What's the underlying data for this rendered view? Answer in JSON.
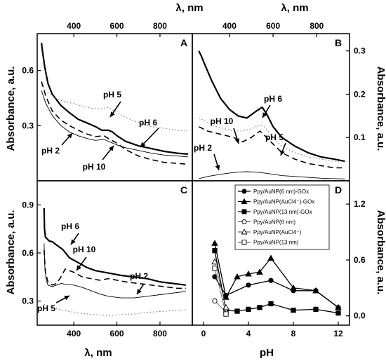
{
  "figure": {
    "top_axis_title": "λ, nm",
    "bottom_axis_title": "λ, nm",
    "left_axis_title": "Absorbance, a.u.",
    "right_axis_title": "Absorbance, a.u.",
    "bottom_right_axis_title": "pH"
  },
  "chart_data": [
    {
      "panel": "A",
      "type": "line",
      "xlabel": "λ, nm",
      "ylabel": "Absorbance, a.u.",
      "xlim": [
        230,
        950
      ],
      "ylim": [
        0.0,
        0.8
      ],
      "xticks": [
        "400",
        "600",
        "800"
      ],
      "yticks": [
        "0.3",
        "0.6"
      ],
      "series": [
        {
          "name": "pH 6",
          "style": "solid-thick",
          "x": [
            250,
            255,
            265,
            280,
            300,
            340,
            380,
            420,
            460,
            500,
            530,
            560,
            580,
            600,
            640,
            700,
            760,
            820,
            880,
            930
          ],
          "y": [
            0.75,
            0.7,
            0.62,
            0.53,
            0.47,
            0.41,
            0.37,
            0.335,
            0.315,
            0.295,
            0.275,
            0.275,
            0.265,
            0.245,
            0.215,
            0.19,
            0.175,
            0.16,
            0.15,
            0.145
          ]
        },
        {
          "name": "pH 5",
          "style": "dotted",
          "x": [
            250,
            280,
            320,
            360,
            400,
            440,
            480,
            520,
            560,
            600,
            640,
            700,
            760,
            820,
            880,
            930
          ],
          "y": [
            0.52,
            0.48,
            0.445,
            0.43,
            0.42,
            0.405,
            0.395,
            0.39,
            0.4,
            0.37,
            0.345,
            0.315,
            0.295,
            0.285,
            0.275,
            0.27
          ]
        },
        {
          "name": "pH 10",
          "style": "dashed",
          "x": [
            250,
            270,
            300,
            340,
            380,
            420,
            460,
            500,
            540,
            560,
            600,
            640,
            700,
            760,
            820,
            880,
            930
          ],
          "y": [
            0.54,
            0.46,
            0.38,
            0.33,
            0.3,
            0.275,
            0.255,
            0.24,
            0.245,
            0.23,
            0.205,
            0.17,
            0.135,
            0.115,
            0.1,
            0.095,
            0.09
          ]
        },
        {
          "name": "pH 2",
          "style": "solid-thin",
          "x": [
            250,
            270,
            300,
            340,
            380,
            420,
            460,
            500,
            540,
            560,
            600,
            640,
            700,
            760,
            820,
            880,
            930
          ],
          "y": [
            0.49,
            0.42,
            0.355,
            0.3,
            0.265,
            0.245,
            0.23,
            0.22,
            0.225,
            0.215,
            0.195,
            0.18,
            0.165,
            0.15,
            0.14,
            0.135,
            0.13
          ]
        }
      ],
      "annotations": [
        "pH 5",
        "pH 6",
        "pH 2",
        "pH 10"
      ]
    },
    {
      "panel": "B",
      "type": "line",
      "xlabel": "λ, nm",
      "ylabel": "Absorbance, a.u.",
      "xlim": [
        230,
        950
      ],
      "ylim": [
        0.0,
        0.34
      ],
      "xticks": [
        "400",
        "600",
        "800"
      ],
      "yticks": [
        "0.1",
        "0.2",
        "0.3"
      ],
      "series": [
        {
          "name": "pH 6",
          "style": "solid-thick",
          "x": [
            260,
            270,
            290,
            320,
            360,
            400,
            440,
            480,
            520,
            550,
            570,
            600,
            640,
            700,
            760,
            820,
            880,
            930
          ],
          "y": [
            0.3,
            0.29,
            0.265,
            0.23,
            0.19,
            0.165,
            0.15,
            0.145,
            0.16,
            0.17,
            0.155,
            0.125,
            0.1,
            0.08,
            0.065,
            0.055,
            0.05,
            0.045
          ]
        },
        {
          "name": "pH 5",
          "style": "dotted",
          "x": [
            260,
            300,
            340,
            380,
            420,
            460,
            500,
            540,
            560,
            600,
            640,
            700,
            760,
            820,
            880,
            930
          ],
          "y": [
            0.145,
            0.135,
            0.125,
            0.12,
            0.115,
            0.115,
            0.12,
            0.13,
            0.125,
            0.1,
            0.08,
            0.065,
            0.055,
            0.05,
            0.045,
            0.045
          ]
        },
        {
          "name": "pH 10",
          "style": "dashed",
          "x": [
            260,
            300,
            340,
            380,
            420,
            460,
            500,
            540,
            560,
            600,
            640,
            700,
            760,
            820,
            880,
            930
          ],
          "y": [
            0.125,
            0.115,
            0.11,
            0.105,
            0.1,
            0.09,
            0.1,
            0.115,
            0.105,
            0.085,
            0.065,
            0.05,
            0.04,
            0.035,
            0.03,
            0.03
          ]
        },
        {
          "name": "pH 2",
          "style": "solid-thin",
          "x": [
            260,
            300,
            360,
            400,
            440,
            480,
            520,
            560,
            600,
            640,
            700,
            760,
            820,
            880,
            930
          ],
          "y": [
            0.005,
            0.01,
            0.015,
            0.018,
            0.02,
            0.021,
            0.02,
            0.018,
            0.015,
            0.012,
            0.01,
            0.008,
            0.006,
            0.005,
            0.004
          ]
        }
      ],
      "annotations": [
        "pH 6",
        "pH 10",
        "pH 5",
        "pH 2"
      ]
    },
    {
      "panel": "C",
      "type": "line",
      "xlabel": "λ, nm",
      "ylabel": "Absorbance, a.u.",
      "xlim": [
        230,
        950
      ],
      "ylim": [
        0.15,
        1.05
      ],
      "xticks": [
        "400",
        "600",
        "800"
      ],
      "yticks": [
        "0.3",
        "0.6",
        "0.9"
      ],
      "series": [
        {
          "name": "pH 6",
          "style": "solid-thick",
          "x": [
            262,
            264,
            268,
            275,
            285,
            300,
            320,
            350,
            380,
            420,
            460,
            500,
            560,
            620,
            680,
            740,
            800,
            860,
            920
          ],
          "y": [
            0.88,
            0.75,
            0.7,
            0.69,
            0.675,
            0.67,
            0.65,
            0.62,
            0.57,
            0.54,
            0.51,
            0.49,
            0.475,
            0.46,
            0.45,
            0.44,
            0.42,
            0.41,
            0.4
          ]
        },
        {
          "name": "pH 10",
          "style": "dashed",
          "x": [
            262,
            268,
            280,
            300,
            320,
            340,
            360,
            380,
            400,
            440,
            480,
            520,
            560,
            600,
            640,
            700,
            760,
            820,
            880,
            920
          ],
          "y": [
            0.62,
            0.48,
            0.42,
            0.4,
            0.41,
            0.45,
            0.5,
            0.49,
            0.48,
            0.45,
            0.44,
            0.43,
            0.44,
            0.43,
            0.42,
            0.41,
            0.4,
            0.39,
            0.38,
            0.38
          ]
        },
        {
          "name": "pH 2",
          "style": "solid-thin",
          "x": [
            262,
            266,
            272,
            280,
            300,
            320,
            340,
            360,
            400,
            440,
            480,
            520,
            560,
            620,
            680,
            740,
            800,
            860,
            920
          ],
          "y": [
            0.66,
            0.5,
            0.43,
            0.4,
            0.39,
            0.4,
            0.41,
            0.405,
            0.4,
            0.385,
            0.365,
            0.345,
            0.33,
            0.32,
            0.32,
            0.33,
            0.34,
            0.35,
            0.36
          ]
        },
        {
          "name": "pH 5",
          "style": "dotted",
          "x": [
            262,
            300,
            340,
            380,
            420,
            460,
            500,
            560,
            620,
            680,
            740,
            800,
            860,
            920
          ],
          "y": [
            0.28,
            0.26,
            0.245,
            0.235,
            0.225,
            0.22,
            0.215,
            0.21,
            0.215,
            0.22,
            0.23,
            0.235,
            0.24,
            0.245
          ]
        }
      ],
      "annotations": [
        "pH 6",
        "pH 10",
        "pH 2",
        "pH 5"
      ]
    },
    {
      "panel": "D",
      "type": "line",
      "xlabel": "pH",
      "ylabel": "Absorbance, a.u.",
      "xlim": [
        -1,
        13
      ],
      "ylim": [
        -0.1,
        1.45
      ],
      "xticks": [
        "0",
        "4",
        "8",
        "12"
      ],
      "yticks": [
        "0.0",
        "0.6",
        "1.2"
      ],
      "legend_placement": "top",
      "series": [
        {
          "name": "Ppy/AuNP(6 nm)-GOx",
          "marker": "filled-circle",
          "x": [
            1,
            2,
            4,
            6,
            8,
            10,
            12
          ],
          "y": [
            0.42,
            0.22,
            0.33,
            0.38,
            0.27,
            0.27,
            0.09
          ]
        },
        {
          "name": "Ppy/AuNP(AuCl4⁻)-GOx",
          "marker": "filled-triangle",
          "x": [
            1,
            2,
            3,
            4,
            5,
            6,
            8,
            10,
            12
          ],
          "y": [
            0.78,
            0.2,
            0.42,
            0.45,
            0.47,
            0.62,
            0.3,
            0.27,
            0.09
          ]
        },
        {
          "name": "Ppy/AuNP(13 nm)-GOx",
          "marker": "filled-square",
          "x": [
            1,
            2,
            3,
            4,
            5,
            6,
            8,
            10,
            12
          ],
          "y": [
            0.7,
            0.06,
            0.05,
            0.07,
            0.09,
            0.13,
            0.06,
            0.07,
            0.03
          ]
        },
        {
          "name": "Ppy/AuNP(6 nm)",
          "marker": "open-circle",
          "x": [
            1,
            2
          ],
          "y": [
            0.16,
            0.04
          ]
        },
        {
          "name": "Ppy/AuNP(AuCl4⁻)",
          "marker": "open-triangle",
          "x": [
            1,
            2
          ],
          "y": [
            0.58,
            0.09
          ]
        },
        {
          "name": "Ppy/AuNP(13 nm)",
          "marker": "open-square",
          "x": [
            1,
            2
          ],
          "y": [
            0.51,
            0.02
          ]
        }
      ]
    }
  ]
}
